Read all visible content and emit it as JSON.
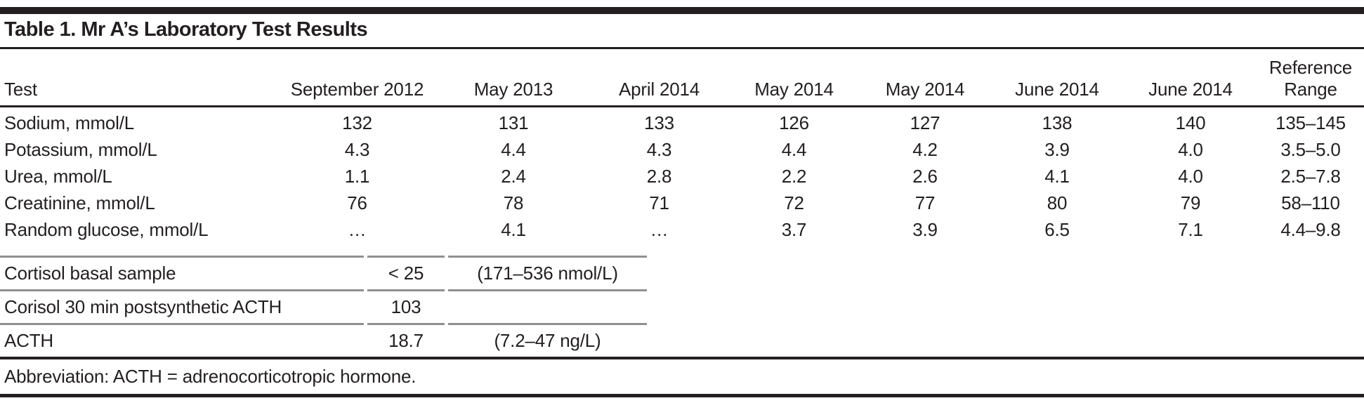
{
  "title": "Table 1. Mr A’s Laboratory Test Results",
  "main_table": {
    "header": {
      "test": "Test",
      "columns": [
        "September 2012",
        "May 2013",
        "April 2014",
        "May 2014",
        "May 2014",
        "June 2014",
        "June 2014"
      ],
      "reference_line1": "Reference",
      "reference_line2": "Range"
    },
    "rows": [
      {
        "test": "Sodium, mmol/L",
        "values": [
          "132",
          "131",
          "133",
          "126",
          "127",
          "138",
          "140"
        ],
        "reference": "135–145"
      },
      {
        "test": "Potassium, mmol/L",
        "values": [
          "4.3",
          "4.4",
          "4.3",
          "4.4",
          "4.2",
          "3.9",
          "4.0"
        ],
        "reference": "3.5–5.0"
      },
      {
        "test": "Urea, mmol/L",
        "values": [
          "1.1",
          "2.4",
          "2.8",
          "2.2",
          "2.6",
          "4.1",
          "4.0"
        ],
        "reference": "2.5–7.8"
      },
      {
        "test": "Creatinine, mmol/L",
        "values": [
          "76",
          "78",
          "71",
          "72",
          "77",
          "80",
          "79"
        ],
        "reference": "58–110"
      },
      {
        "test": "Random glucose, mmol/L",
        "values": [
          "…",
          "4.1",
          "…",
          "3.7",
          "3.9",
          "6.5",
          "7.1"
        ],
        "reference": "4.4–9.8"
      }
    ]
  },
  "hormone_table": {
    "rows": [
      {
        "test": "Cortisol basal sample",
        "value": "< 25",
        "range": "(171–536 nmol/L)"
      },
      {
        "test": "Corisol 30 min postsynthetic ACTH",
        "value": "103",
        "range": ""
      },
      {
        "test": "ACTH",
        "value": "18.7",
        "range": "(7.2–47 ng/L)"
      }
    ]
  },
  "footnote": "Abbreviation: ACTH = adrenocorticotropic hormone.",
  "colors": {
    "text": "#231f20",
    "rule_black": "#231f20",
    "rule_gray": "#8f8f8f",
    "background": "#ffffff"
  }
}
